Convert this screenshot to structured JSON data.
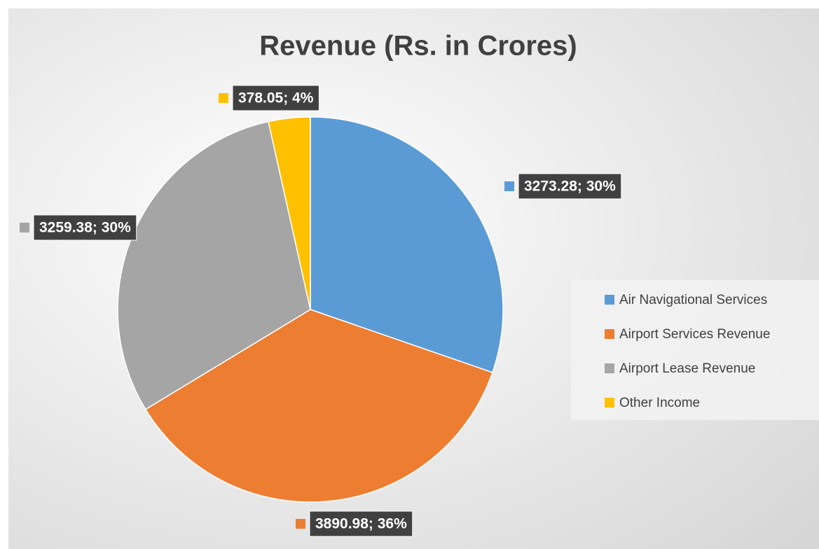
{
  "chart_data": {
    "type": "pie",
    "title": "Revenue (Rs. in Crores)",
    "categories": [
      "Air Navigational Services",
      "Airport Services Revenue",
      "Airport Lease Revenue",
      "Other Income"
    ],
    "values": [
      3273.28,
      3890.98,
      3259.38,
      378.05
    ],
    "value_labels": [
      "3273.28; 30%",
      "3890.98; 36%",
      "3259.38; 30%",
      "378.05; 4%"
    ],
    "colors": [
      "#5b9bd5",
      "#ed7d31",
      "#a5a5a5",
      "#ffc000"
    ],
    "legend": "right"
  }
}
